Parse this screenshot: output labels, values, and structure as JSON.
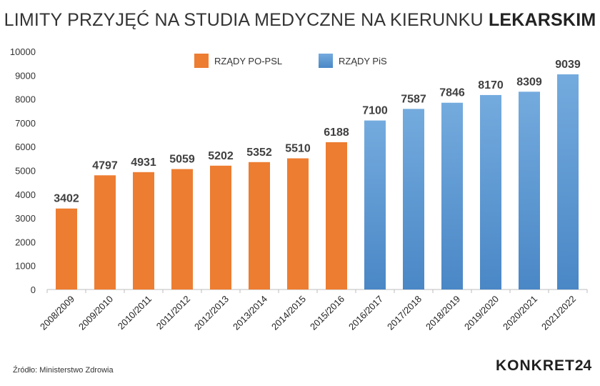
{
  "chart_data": {
    "type": "bar",
    "title": "LIMITY PRZYJĘĆ NA STUDIA MEDYCZNE NA KIERUNKU",
    "title_bold": "LEKARSKIM",
    "categories": [
      "2008/2009",
      "2009/2010",
      "2010/2011",
      "2011/2012",
      "2012/2013",
      "2013/2014",
      "2014/2015",
      "2015/2016",
      "2016/2017",
      "2017/2018",
      "2018/2019",
      "2019/2020",
      "2020/2021",
      "2021/2022"
    ],
    "values": [
      3402,
      4797,
      4931,
      5059,
      5202,
      5352,
      5510,
      6188,
      7100,
      7587,
      7846,
      8170,
      8309,
      9039
    ],
    "groups": [
      {
        "name": "RZĄDY PO-PSL",
        "color": "#ED7D31",
        "from": 0,
        "to": 7
      },
      {
        "name": "RZĄDY PiS",
        "color": "#5B9BD5",
        "from": 8,
        "to": 13
      }
    ],
    "ylim": [
      0,
      10000
    ],
    "yticks": [
      0,
      1000,
      2000,
      3000,
      4000,
      5000,
      6000,
      7000,
      8000,
      9000,
      10000
    ],
    "legend_position": "top",
    "grid": false
  },
  "footer": {
    "source": "Źródło: Ministerstwo Zdrowia",
    "brand": "KONKRET",
    "brand_num": "24"
  }
}
